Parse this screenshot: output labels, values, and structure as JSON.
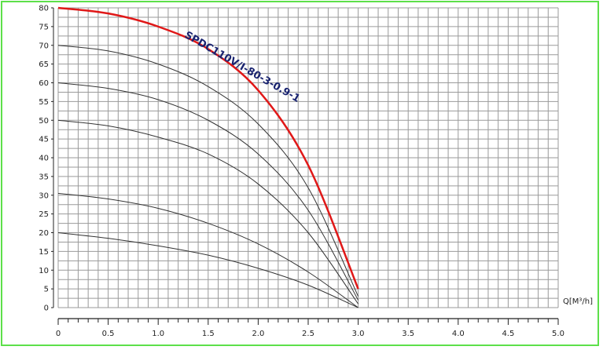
{
  "chart_data": {
    "type": "line",
    "title": "",
    "xlabel": "Q[M³/h]",
    "ylabel": "",
    "xlim": [
      0,
      5.0
    ],
    "ylim": [
      0,
      80
    ],
    "grid": true,
    "x_ticks": [
      "0",
      "0.5",
      "1.0",
      "1.5",
      "2.0",
      "2.5",
      "3.0",
      "3.5",
      "4.0",
      "4.5",
      "5.0"
    ],
    "y_ticks": [
      "0",
      "5",
      "10",
      "15",
      "20",
      "25",
      "30",
      "35",
      "40",
      "45",
      "50",
      "55",
      "60",
      "65",
      "70",
      "75",
      "80"
    ],
    "annotation": "SPDC110V/I-80-3-0.9-1",
    "colors": {
      "grid": "#9a9a9a",
      "highlight": "#e01818",
      "curve": "#333333",
      "frame": "#5de04a",
      "label": "#1a2470"
    },
    "series": [
      {
        "highlight": false,
        "x": [
          0,
          0.5,
          1.0,
          1.5,
          2.0,
          2.5,
          3.0
        ],
        "y": [
          20,
          18.5,
          16.5,
          14,
          10.5,
          6,
          0
        ]
      },
      {
        "highlight": false,
        "x": [
          0,
          0.5,
          1.0,
          1.5,
          2.0,
          2.5,
          3.0
        ],
        "y": [
          30.5,
          29,
          26.5,
          22.5,
          17,
          9.5,
          0
        ]
      },
      {
        "highlight": false,
        "x": [
          0,
          0.5,
          1.0,
          1.5,
          2.0,
          2.5,
          3.0
        ],
        "y": [
          50,
          48.5,
          45.5,
          41,
          33,
          20,
          1
        ]
      },
      {
        "highlight": false,
        "x": [
          0,
          0.5,
          1.0,
          1.5,
          2.0,
          2.5,
          3.0
        ],
        "y": [
          60,
          58.5,
          55.5,
          50,
          41,
          26,
          2
        ]
      },
      {
        "highlight": false,
        "x": [
          0,
          0.5,
          1.0,
          1.5,
          2.0,
          2.5,
          3.0
        ],
        "y": [
          70,
          68.5,
          65,
          59,
          49,
          32,
          3
        ]
      },
      {
        "highlight": true,
        "x": [
          0,
          0.5,
          1.0,
          1.5,
          2.0,
          2.5,
          3.0
        ],
        "y": [
          80,
          78.5,
          75,
          69,
          58,
          38,
          5
        ]
      }
    ]
  }
}
